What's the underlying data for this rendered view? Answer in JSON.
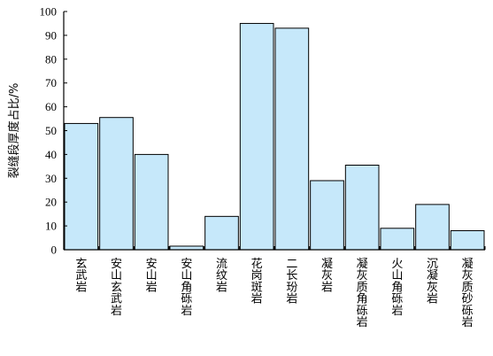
{
  "chart_data": {
    "type": "bar",
    "categories": [
      "玄武岩",
      "安山玄武岩",
      "安山岩",
      "安山角砾岩",
      "流纹岩",
      "花岗斑岩",
      "二长玢岩",
      "凝灰岩",
      "凝灰质角砾岩",
      "火山角砾岩",
      "沉凝灰岩",
      "凝灰质砂砾岩"
    ],
    "values": [
      53,
      55.5,
      40,
      1.5,
      14,
      95,
      93,
      29,
      35.5,
      9,
      19,
      8
    ],
    "ylabel": "裂缝段厚度占比/%",
    "xlabel": "",
    "ylim": [
      0,
      100
    ],
    "yticks": [
      0,
      10,
      20,
      30,
      40,
      50,
      60,
      70,
      80,
      90,
      100
    ],
    "grid": false,
    "bar_color": "#c6e8fa",
    "edge_color": "#000000"
  }
}
